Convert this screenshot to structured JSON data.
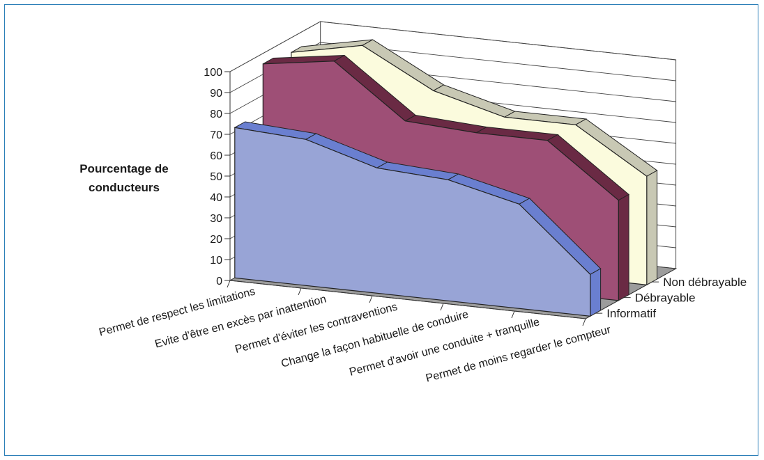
{
  "chart_data": {
    "type": "area",
    "ylabel": [
      "Pourcentage de",
      "conducteurs"
    ],
    "ylim": [
      0,
      100
    ],
    "yticks": [
      "0",
      "10",
      "20",
      "30",
      "40",
      "50",
      "60",
      "70",
      "80",
      "90",
      "100"
    ],
    "categories": [
      "Permet de respect les limitations",
      "Evite d'être en excès par inattention",
      "Permet d'éviter les contraventions",
      "Change la façon habituelle de conduire",
      "Permet d'avoir une conduite + tranquille",
      "Permet de moins regarder le compteur"
    ],
    "series": [
      {
        "name": "Informatif",
        "values": [
          72,
          70,
          60,
          58,
          50,
          20
        ]
      },
      {
        "name": "Débrayable",
        "values": [
          95,
          100,
          75,
          73,
          73,
          48
        ]
      },
      {
        "name": "Non débrayable",
        "values": [
          93,
          100,
          82,
          73,
          73,
          52
        ]
      }
    ],
    "grid": true,
    "colors": {
      "series": [
        "#98a4d6",
        "#9e4f76",
        "#fbfbdd"
      ],
      "tops": [
        "#6a7fd0",
        "#6a2a44",
        "#c8c8b4"
      ],
      "floor": "#9c9c9c",
      "wall": "#ffffff"
    }
  }
}
